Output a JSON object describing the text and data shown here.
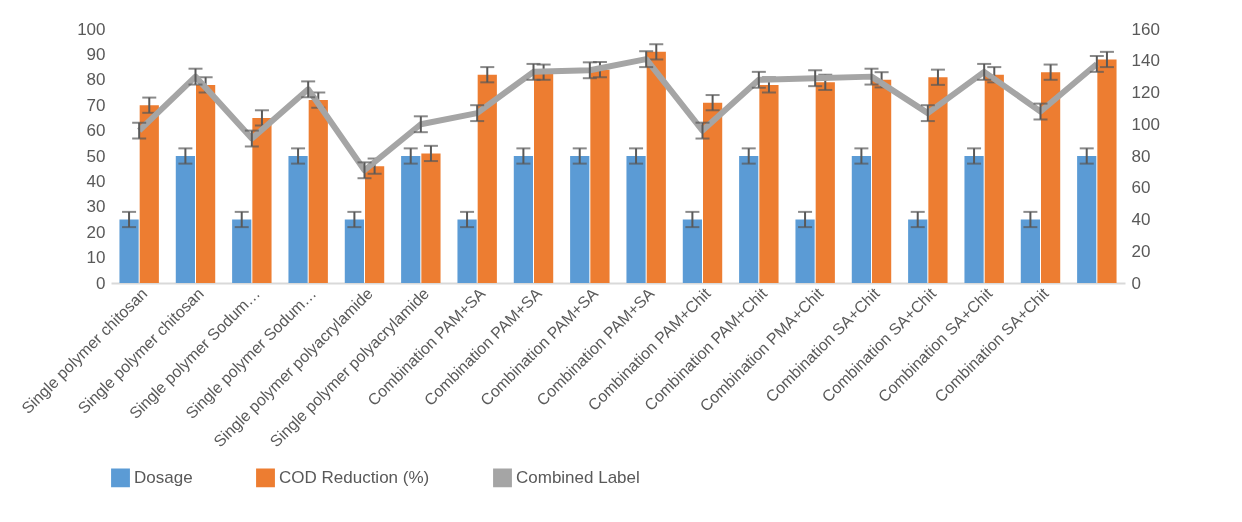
{
  "chart_data": {
    "type": "bar",
    "categories": [
      "Single polymer  chitosan",
      "Single polymer  chitosan",
      "Single polymer Sodum…",
      "Single polymer Sodum…",
      "Single polymer polyacrylamide",
      "Single polymer polyacrylamide",
      "Combination PAM+SA",
      "Combination PAM+SA",
      "Combination PAM+SA",
      "Combination PAM+SA",
      "Combination PAM+Chit",
      "Combination PAM+Chit",
      "Combination PMA+Chit",
      "Combination SA+Chit",
      "Combination SA+Chit",
      "Combination SA+Chit",
      "Combination SA+Chit",
      null
    ],
    "series": [
      {
        "name": "Dosage",
        "color": "#5b9bd5",
        "values": [
          25,
          50,
          25,
          50,
          25,
          50,
          25,
          50,
          50,
          50,
          25,
          50,
          25,
          50,
          25,
          50,
          25,
          50
        ],
        "errors": [
          3,
          3,
          3,
          3,
          3,
          3,
          3,
          3,
          3,
          3,
          3,
          3,
          3,
          3,
          3,
          3,
          3,
          3
        ]
      },
      {
        "name": "COD Reduction (%)",
        "color": "#ed7d31",
        "values": [
          70,
          78,
          65,
          72,
          46,
          51,
          82,
          83,
          84,
          91,
          71,
          78,
          79,
          80,
          81,
          82,
          83,
          88
        ],
        "errors": [
          3,
          3,
          3,
          3,
          3,
          3,
          3,
          3,
          3,
          3,
          3,
          3,
          3,
          3,
          3,
          3,
          3,
          3
        ]
      },
      {
        "name": "Combined Label",
        "type": "line",
        "axis": "y2",
        "color": "#a5a5a5",
        "values": [
          96,
          130,
          91,
          122,
          71,
          100,
          107,
          133,
          134,
          141,
          96,
          128,
          129,
          130,
          107,
          133,
          108,
          138
        ],
        "errors": [
          5,
          5,
          5,
          5,
          5,
          5,
          5,
          5,
          5,
          5,
          5,
          5,
          5,
          5,
          5,
          5,
          5,
          5
        ]
      }
    ],
    "ylim": [
      0,
      100
    ],
    "yticks": [
      0,
      10,
      20,
      30,
      40,
      50,
      60,
      70,
      80,
      90,
      100
    ],
    "y2lim": [
      0,
      160
    ],
    "y2ticks": [
      0,
      20,
      40,
      60,
      80,
      100,
      120,
      140,
      160
    ],
    "grid": false,
    "legend": "bottom",
    "marker": "none",
    "line_style": "solid"
  }
}
